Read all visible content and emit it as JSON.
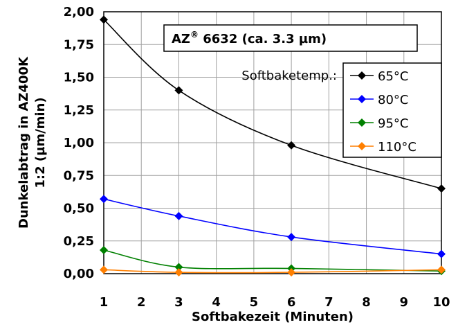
{
  "chart_data": {
    "type": "line",
    "title": "",
    "xlabel": "Softbakezeit (Minuten)",
    "ylabel_line1": "Dunkelabtrag in AZ400K",
    "ylabel_line2": "1:2 (µm/min)",
    "xlim": [
      1,
      10
    ],
    "ylim": [
      0,
      2.0
    ],
    "x_ticks": [
      1,
      2,
      3,
      4,
      5,
      6,
      7,
      8,
      9,
      10
    ],
    "y_ticks": [
      0,
      0.25,
      0.5,
      0.75,
      1.0,
      1.25,
      1.5,
      1.75,
      2.0
    ],
    "y_tick_labels": [
      "0,00",
      "0,25",
      "0,50",
      "0,75",
      "1,00",
      "1,25",
      "1,50",
      "1,75",
      "2,00"
    ],
    "grid": true,
    "legend_placement": "right",
    "legend_title": "Softbaketemp.:",
    "annotation": {
      "text_main": "AZ",
      "superscript": "®",
      "text_rest": " 6632 (ca. 3.3 µm)"
    },
    "series": [
      {
        "name": "65°C",
        "color": "#000000",
        "x": [
          1,
          3,
          6,
          10
        ],
        "values": [
          1.94,
          1.4,
          0.98,
          0.65
        ]
      },
      {
        "name": "80°C",
        "color": "#0000ff",
        "x": [
          1,
          3,
          6,
          10
        ],
        "values": [
          0.57,
          0.44,
          0.28,
          0.15
        ]
      },
      {
        "name": "95°C",
        "color": "#008000",
        "x": [
          1,
          3,
          6,
          10
        ],
        "values": [
          0.18,
          0.05,
          0.04,
          0.02
        ]
      },
      {
        "name": "110°C",
        "color": "#ff7f00",
        "x": [
          1,
          3,
          6,
          10
        ],
        "values": [
          0.03,
          0.01,
          0.01,
          0.03
        ]
      }
    ]
  }
}
